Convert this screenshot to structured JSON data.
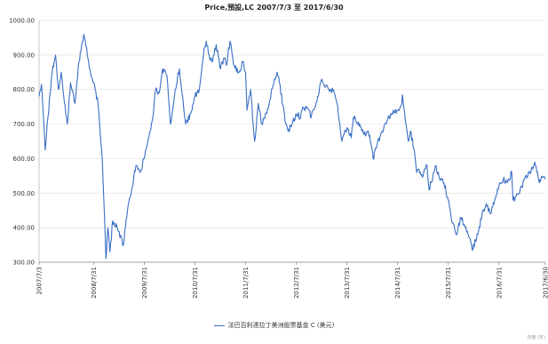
{
  "chart_data": {
    "type": "line",
    "title": "Price,預設,LC 2007/7/3 至 2017/6/30",
    "xlabel": "",
    "ylabel": "",
    "xlim": [
      "2007-07-03",
      "2017-06-30"
    ],
    "ylim": [
      300,
      1000
    ],
    "y_ticks": [
      300,
      400,
      500,
      600,
      700,
      800,
      900,
      1000
    ],
    "y_tick_labels": [
      "300.00",
      "400.00",
      "500.00",
      "600.00",
      "700.00",
      "800.00",
      "900.00",
      "1000.00"
    ],
    "x_ticks": [
      "2007-07-03",
      "2008-07-31",
      "2009-07-31",
      "2010-07-31",
      "2011-07-31",
      "2012-07-31",
      "2013-07-31",
      "2014-07-31",
      "2015-07-31",
      "2016-07-31",
      "2017-06-30"
    ],
    "x_tick_labels": [
      "2007/7/3",
      "2008/7/31",
      "2009/7/31",
      "2010/7/31",
      "2011/7/31",
      "2012/7/31",
      "2013/7/31",
      "2014/7/31",
      "2015/7/31",
      "2016/7/31",
      "2017/6/30"
    ],
    "grid": "horizontal",
    "legend_position": "bottom",
    "series": [
      {
        "name": "法巴百利達拉丁美洲股票基金 C (美元)",
        "color": "#3A6FC4",
        "points": [
          [
            "2007-07-03",
            780
          ],
          [
            "2007-07-20",
            815
          ],
          [
            "2007-08-16",
            625
          ],
          [
            "2007-09-05",
            720
          ],
          [
            "2007-10-05",
            850
          ],
          [
            "2007-10-30",
            900
          ],
          [
            "2007-11-20",
            800
          ],
          [
            "2007-12-10",
            850
          ],
          [
            "2008-01-22",
            700
          ],
          [
            "2008-02-15",
            820
          ],
          [
            "2008-03-17",
            760
          ],
          [
            "2008-04-15",
            880
          ],
          [
            "2008-05-20",
            960
          ],
          [
            "2008-06-10",
            920
          ],
          [
            "2008-06-30",
            860
          ],
          [
            "2008-07-31",
            820
          ],
          [
            "2008-08-31",
            760
          ],
          [
            "2008-09-30",
            600
          ],
          [
            "2008-10-15",
            450
          ],
          [
            "2008-10-27",
            310
          ],
          [
            "2008-11-10",
            400
          ],
          [
            "2008-11-25",
            330
          ],
          [
            "2008-12-15",
            420
          ],
          [
            "2009-01-15",
            400
          ],
          [
            "2009-03-02",
            350
          ],
          [
            "2009-03-31",
            450
          ],
          [
            "2009-04-30",
            510
          ],
          [
            "2009-05-31",
            580
          ],
          [
            "2009-06-30",
            560
          ],
          [
            "2009-07-31",
            600
          ],
          [
            "2009-08-31",
            660
          ],
          [
            "2009-09-30",
            720
          ],
          [
            "2009-10-20",
            800
          ],
          [
            "2009-11-15",
            790
          ],
          [
            "2009-12-10",
            860
          ],
          [
            "2010-01-10",
            840
          ],
          [
            "2010-02-05",
            700
          ],
          [
            "2010-03-10",
            800
          ],
          [
            "2010-04-10",
            860
          ],
          [
            "2010-05-25",
            700
          ],
          [
            "2010-06-30",
            730
          ],
          [
            "2010-07-31",
            780
          ],
          [
            "2010-08-31",
            800
          ],
          [
            "2010-09-30",
            900
          ],
          [
            "2010-10-20",
            940
          ],
          [
            "2010-11-10",
            900
          ],
          [
            "2010-11-30",
            880
          ],
          [
            "2010-12-31",
            930
          ],
          [
            "2011-01-31",
            860
          ],
          [
            "2011-02-28",
            890
          ],
          [
            "2011-03-15",
            870
          ],
          [
            "2011-04-10",
            940
          ],
          [
            "2011-05-10",
            870
          ],
          [
            "2011-06-15",
            850
          ],
          [
            "2011-07-10",
            880
          ],
          [
            "2011-07-31",
            850
          ],
          [
            "2011-08-10",
            740
          ],
          [
            "2011-09-05",
            800
          ],
          [
            "2011-10-04",
            650
          ],
          [
            "2011-10-31",
            760
          ],
          [
            "2011-11-25",
            700
          ],
          [
            "2011-12-31",
            730
          ],
          [
            "2012-01-31",
            790
          ],
          [
            "2012-02-29",
            830
          ],
          [
            "2012-03-15",
            850
          ],
          [
            "2012-03-31",
            820
          ],
          [
            "2012-05-15",
            700
          ],
          [
            "2012-06-01",
            680
          ],
          [
            "2012-06-30",
            700
          ],
          [
            "2012-07-31",
            730
          ],
          [
            "2012-08-31",
            720
          ],
          [
            "2012-09-15",
            750
          ],
          [
            "2012-10-31",
            740
          ],
          [
            "2012-11-15",
            720
          ],
          [
            "2012-12-31",
            780
          ],
          [
            "2013-01-31",
            830
          ],
          [
            "2013-02-28",
            810
          ],
          [
            "2013-03-31",
            800
          ],
          [
            "2013-04-30",
            790
          ],
          [
            "2013-05-20",
            760
          ],
          [
            "2013-06-24",
            650
          ],
          [
            "2013-07-31",
            690
          ],
          [
            "2013-08-31",
            660
          ],
          [
            "2013-09-15",
            720
          ],
          [
            "2013-10-31",
            700
          ],
          [
            "2013-11-30",
            670
          ],
          [
            "2013-12-31",
            680
          ],
          [
            "2014-01-31",
            620
          ],
          [
            "2014-02-04",
            600
          ],
          [
            "2014-02-28",
            630
          ],
          [
            "2014-03-31",
            670
          ],
          [
            "2014-04-30",
            700
          ],
          [
            "2014-05-31",
            720
          ],
          [
            "2014-06-30",
            740
          ],
          [
            "2014-07-31",
            740
          ],
          [
            "2014-08-31",
            760
          ],
          [
            "2014-09-04",
            785
          ],
          [
            "2014-09-30",
            700
          ],
          [
            "2014-10-15",
            650
          ],
          [
            "2014-10-31",
            680
          ],
          [
            "2014-11-30",
            620
          ],
          [
            "2014-12-16",
            560
          ],
          [
            "2014-12-31",
            570
          ],
          [
            "2015-01-31",
            550
          ],
          [
            "2015-02-28",
            580
          ],
          [
            "2015-03-15",
            510
          ],
          [
            "2015-04-30",
            580
          ],
          [
            "2015-05-31",
            540
          ],
          [
            "2015-06-30",
            530
          ],
          [
            "2015-07-31",
            480
          ],
          [
            "2015-08-24",
            420
          ],
          [
            "2015-09-30",
            380
          ],
          [
            "2015-10-31",
            430
          ],
          [
            "2015-11-30",
            400
          ],
          [
            "2015-12-31",
            370
          ],
          [
            "2016-01-20",
            335
          ],
          [
            "2016-02-29",
            380
          ],
          [
            "2016-03-31",
            440
          ],
          [
            "2016-04-30",
            470
          ],
          [
            "2016-05-31",
            440
          ],
          [
            "2016-06-30",
            480
          ],
          [
            "2016-07-31",
            520
          ],
          [
            "2016-08-31",
            540
          ],
          [
            "2016-09-30",
            530
          ],
          [
            "2016-10-31",
            560
          ],
          [
            "2016-11-09",
            480
          ],
          [
            "2016-11-30",
            490
          ],
          [
            "2016-12-31",
            510
          ],
          [
            "2017-01-31",
            540
          ],
          [
            "2017-02-28",
            560
          ],
          [
            "2017-03-31",
            570
          ],
          [
            "2017-04-15",
            590
          ],
          [
            "2017-04-30",
            560
          ],
          [
            "2017-05-18",
            530
          ],
          [
            "2017-05-31",
            545
          ],
          [
            "2017-06-30",
            540
          ]
        ]
      }
    ]
  },
  "footer_note": "年度 (年)"
}
